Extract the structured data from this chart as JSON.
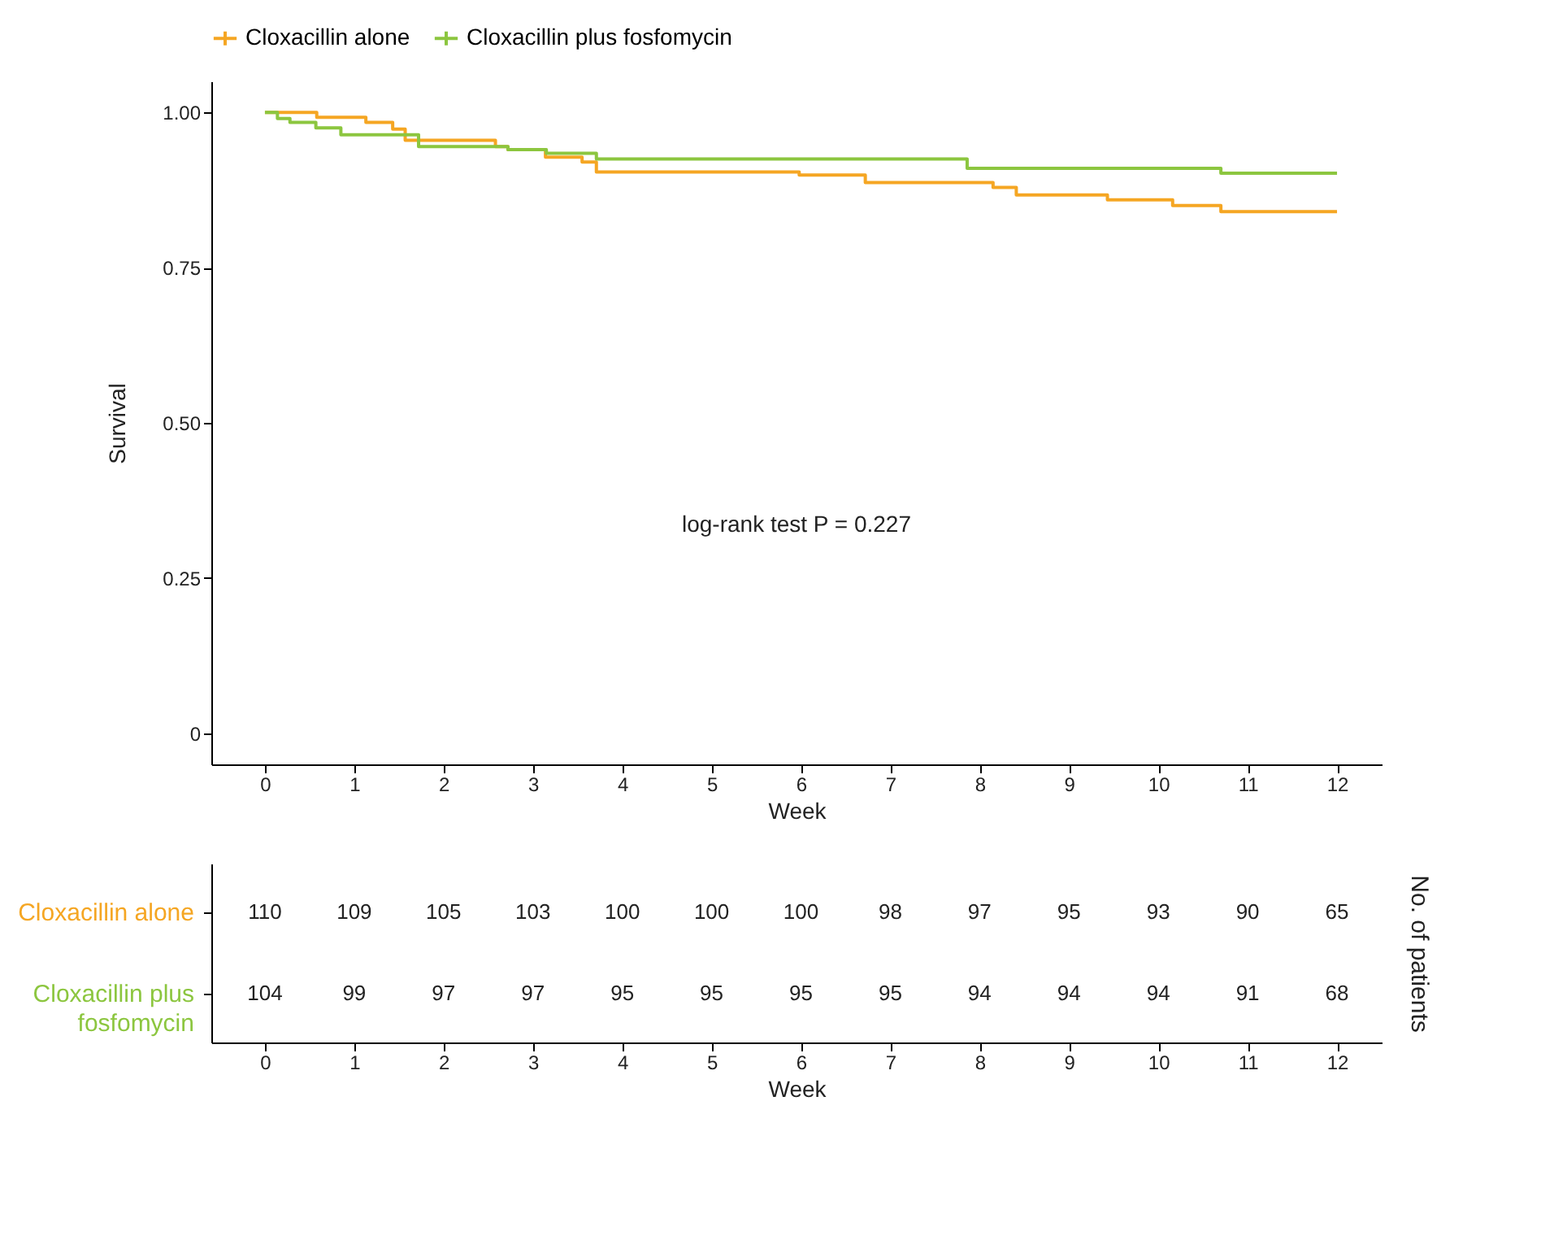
{
  "chart_data": [
    {
      "type": "step",
      "xlabel": "Week",
      "ylabel": "Survival",
      "legend": "top",
      "grid": false,
      "marker": "none",
      "xlim": [
        -0.6,
        12.5
      ],
      "xticks": [
        0,
        1,
        2,
        3,
        4,
        5,
        6,
        7,
        8,
        9,
        10,
        11,
        12
      ],
      "ylim": [
        -0.05,
        1.05
      ],
      "yticks": [
        {
          "value": 0,
          "label": "0"
        },
        {
          "value": 0.25,
          "label": "0.25"
        },
        {
          "value": 0.5,
          "label": "0.50"
        },
        {
          "value": 0.75,
          "label": "0.75"
        },
        {
          "value": 1,
          "label": "1.00"
        }
      ],
      "annotations": [
        "log-rank test P = 0.227"
      ],
      "series": [
        {
          "name": "Cloxacillin alone",
          "color": "#f5a623",
          "x": [
            0,
            0.58,
            1.13,
            1.43,
            1.57,
            2.58,
            2.72,
            3.14,
            3.55,
            3.71,
            5.98,
            6.72,
            8.15,
            8.41,
            9.43,
            10.16,
            10.7,
            12
          ],
          "values": [
            1.0,
            0.992,
            0.984,
            0.973,
            0.955,
            0.945,
            0.94,
            0.928,
            0.92,
            0.904,
            0.899,
            0.887,
            0.879,
            0.867,
            0.859,
            0.85,
            0.84,
            0.84
          ]
        },
        {
          "name": "Cloxacillin plus fosfomycin",
          "color": "#8cc63f",
          "x": [
            0,
            0.14,
            0.28,
            0.57,
            0.85,
            1.72,
            2.72,
            3.15,
            3.71,
            7.86,
            10.7,
            12
          ],
          "values": [
            1.0,
            0.99,
            0.984,
            0.975,
            0.964,
            0.945,
            0.94,
            0.934,
            0.925,
            0.91,
            0.902,
            0.902
          ]
        }
      ]
    },
    {
      "type": "heatmap",
      "xlabel": "Week",
      "ylabel": "No. of patients",
      "data_labels": true,
      "xlim": [
        -0.6,
        12.5
      ],
      "xticks": [
        0,
        1,
        2,
        3,
        4,
        5,
        6,
        7,
        8,
        9,
        10,
        11,
        12
      ],
      "x": [
        0,
        1,
        2,
        3,
        4,
        5,
        6,
        7,
        8,
        9,
        10,
        11,
        12
      ],
      "y_categories": [
        "Cloxacillin alone",
        "Cloxacillin plus fosfomycin"
      ],
      "colors": [
        "#f5a623",
        "#8cc63f"
      ],
      "cells": [
        [
          110,
          109,
          105,
          103,
          100,
          100,
          100,
          98,
          97,
          95,
          93,
          90,
          65
        ],
        [
          104,
          99,
          97,
          97,
          95,
          95,
          95,
          95,
          94,
          94,
          94,
          91,
          68
        ]
      ]
    }
  ]
}
